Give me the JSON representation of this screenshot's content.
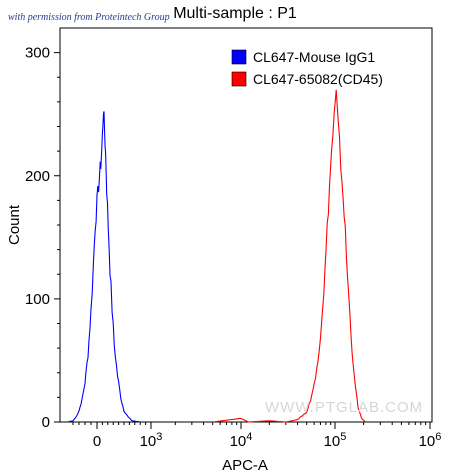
{
  "permission_note": "with permission from Proteintech Group",
  "watermark": "WWW.PTGLAB.COM",
  "chart_data": {
    "type": "histogram",
    "title": "Multi-sample : P1",
    "xlabel": "APC-A",
    "ylabel": "Count",
    "x_scale": "biexponential",
    "ylim": [
      0,
      320
    ],
    "y_ticks": [
      {
        "value": 0,
        "label": "0"
      },
      {
        "value": 100,
        "label": "100"
      },
      {
        "value": 200,
        "label": "200"
      },
      {
        "value": 300,
        "label": "300"
      }
    ],
    "x_ticks": [
      {
        "value": 0,
        "base": "0",
        "exp": ""
      },
      {
        "value": 1000,
        "base": "10",
        "exp": "3"
      },
      {
        "value": 10000,
        "base": "10",
        "exp": "4"
      },
      {
        "value": 100000,
        "base": "10",
        "exp": "5"
      },
      {
        "value": 1000000,
        "base": "10",
        "exp": "6"
      }
    ],
    "legend_position": "top-right",
    "series": [
      {
        "name": "CL647-Mouse IgG1",
        "color": "#0000ff",
        "points": [
          [
            -500,
            0
          ],
          [
            -400,
            1
          ],
          [
            -350,
            4
          ],
          [
            -300,
            9
          ],
          [
            -250,
            18
          ],
          [
            -200,
            32
          ],
          [
            -150,
            55
          ],
          [
            -100,
            90
          ],
          [
            -60,
            128
          ],
          [
            -30,
            160
          ],
          [
            0,
            178
          ],
          [
            30,
            192
          ],
          [
            60,
            205
          ],
          [
            80,
            215
          ],
          [
            100,
            232
          ],
          [
            120,
            255
          ],
          [
            140,
            236
          ],
          [
            160,
            218
          ],
          [
            180,
            190
          ],
          [
            210,
            158
          ],
          [
            240,
            125
          ],
          [
            280,
            92
          ],
          [
            320,
            62
          ],
          [
            380,
            38
          ],
          [
            440,
            20
          ],
          [
            500,
            9
          ],
          [
            580,
            4
          ],
          [
            650,
            1
          ],
          [
            800,
            0
          ]
        ]
      },
      {
        "name": "CL647-65082(CD45)",
        "color": "#ff0000",
        "points": [
          [
            5000,
            0
          ],
          [
            10000,
            3
          ],
          [
            12000,
            0
          ],
          [
            20000,
            1
          ],
          [
            30000,
            0
          ],
          [
            40000,
            2
          ],
          [
            50000,
            8
          ],
          [
            55000,
            18
          ],
          [
            62000,
            35
          ],
          [
            70000,
            70
          ],
          [
            78000,
            120
          ],
          [
            85000,
            175
          ],
          [
            92000,
            220
          ],
          [
            98000,
            248
          ],
          [
            103000,
            266
          ],
          [
            108000,
            240
          ],
          [
            115000,
            210
          ],
          [
            125000,
            170
          ],
          [
            135000,
            120
          ],
          [
            148000,
            70
          ],
          [
            160000,
            35
          ],
          [
            175000,
            12
          ],
          [
            190000,
            3
          ],
          [
            210000,
            0
          ]
        ]
      }
    ]
  }
}
